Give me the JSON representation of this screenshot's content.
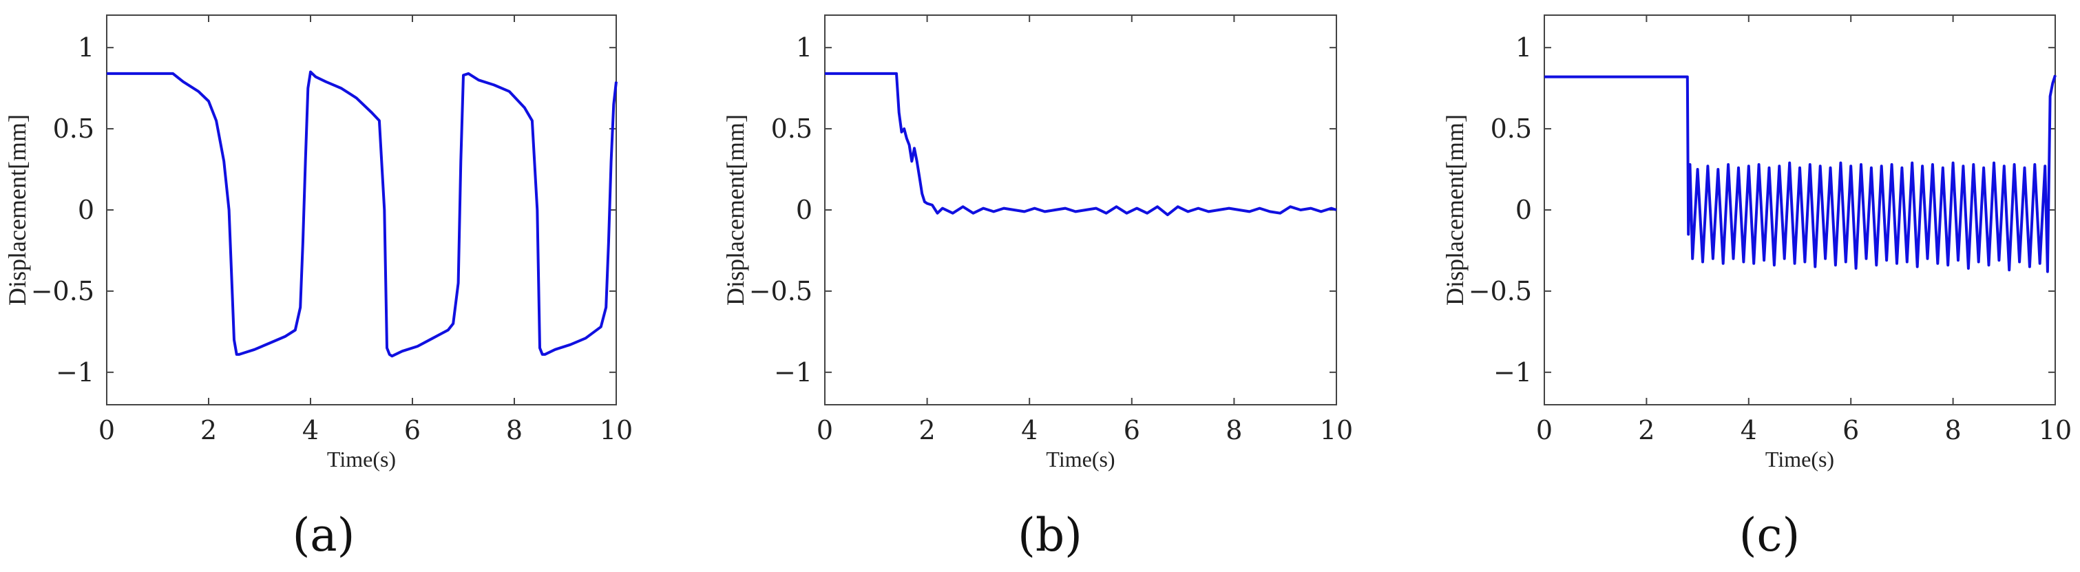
{
  "colors": {
    "series": "#1010e0",
    "axis": "#444444",
    "text": "#222222"
  },
  "chart_data": [
    {
      "type": "line",
      "panel_label": "(a)",
      "xlabel": "Time(s)",
      "ylabel": "Displacement[mm]",
      "xlim": [
        0,
        10
      ],
      "ylim": [
        -1.2,
        1.2
      ],
      "xticks": [
        0,
        2,
        4,
        6,
        8,
        10
      ],
      "yticks": [
        1,
        0.5,
        0,
        -0.5,
        -1
      ],
      "xtick_labels": [
        "0",
        "2",
        "4",
        "6",
        "8",
        "10"
      ],
      "ytick_labels": [
        "1",
        "0.5",
        "0",
        "−0.5",
        "−1"
      ],
      "grid": false,
      "series": [
        {
          "x": [
            0,
            0.5,
            1.0,
            1.3,
            1.5,
            1.8,
            2.0,
            2.15,
            2.3,
            2.4,
            2.45,
            2.5,
            2.55,
            2.6,
            2.7,
            2.9,
            3.2,
            3.5,
            3.7,
            3.8,
            3.85,
            3.9,
            3.95,
            4.0,
            4.1,
            4.3,
            4.6,
            4.9,
            5.2,
            5.35,
            5.45,
            5.5,
            5.55,
            5.6,
            5.8,
            6.1,
            6.4,
            6.7,
            6.8,
            6.9,
            6.95,
            7.0,
            7.1,
            7.3,
            7.6,
            7.9,
            8.2,
            8.35,
            8.45,
            8.5,
            8.55,
            8.6,
            8.8,
            9.1,
            9.4,
            9.7,
            9.8,
            9.85,
            9.9,
            9.95,
            10.0
          ],
          "y": [
            0.84,
            0.84,
            0.84,
            0.84,
            0.79,
            0.73,
            0.67,
            0.55,
            0.3,
            0.0,
            -0.4,
            -0.8,
            -0.89,
            -0.89,
            -0.88,
            -0.86,
            -0.82,
            -0.78,
            -0.74,
            -0.6,
            -0.2,
            0.3,
            0.75,
            0.85,
            0.82,
            0.79,
            0.75,
            0.69,
            0.6,
            0.55,
            0.0,
            -0.85,
            -0.89,
            -0.9,
            -0.87,
            -0.84,
            -0.79,
            -0.74,
            -0.7,
            -0.45,
            0.3,
            0.83,
            0.84,
            0.8,
            0.77,
            0.73,
            0.63,
            0.55,
            0.0,
            -0.85,
            -0.89,
            -0.89,
            -0.86,
            -0.83,
            -0.79,
            -0.72,
            -0.6,
            -0.2,
            0.3,
            0.65,
            0.79
          ]
        }
      ]
    },
    {
      "type": "line",
      "panel_label": "(b)",
      "xlabel": "Time(s)",
      "ylabel": "Displacement[mm]",
      "xlim": [
        0,
        10
      ],
      "ylim": [
        -1.2,
        1.2
      ],
      "xticks": [
        0,
        2,
        4,
        6,
        8,
        10
      ],
      "yticks": [
        1,
        0.5,
        0,
        -0.5,
        -1
      ],
      "xtick_labels": [
        "0",
        "2",
        "4",
        "6",
        "8",
        "10"
      ],
      "ytick_labels": [
        "1",
        "0.5",
        "0",
        "−0.5",
        "−1"
      ],
      "grid": false,
      "series": [
        {
          "x": [
            0,
            0.5,
            1.0,
            1.4,
            1.45,
            1.5,
            1.55,
            1.6,
            1.65,
            1.7,
            1.75,
            1.8,
            1.85,
            1.9,
            1.95,
            2.0,
            2.1,
            2.2,
            2.3,
            2.5,
            2.7,
            2.9,
            3.1,
            3.3,
            3.5,
            3.7,
            3.9,
            4.1,
            4.3,
            4.5,
            4.7,
            4.9,
            5.1,
            5.3,
            5.5,
            5.7,
            5.9,
            6.1,
            6.3,
            6.5,
            6.7,
            6.9,
            7.1,
            7.3,
            7.5,
            7.7,
            7.9,
            8.1,
            8.3,
            8.5,
            8.7,
            8.9,
            9.1,
            9.3,
            9.5,
            9.7,
            9.9,
            10.0
          ],
          "y": [
            0.84,
            0.84,
            0.84,
            0.84,
            0.6,
            0.48,
            0.5,
            0.44,
            0.4,
            0.3,
            0.38,
            0.3,
            0.2,
            0.1,
            0.05,
            0.04,
            0.03,
            -0.02,
            0.01,
            -0.02,
            0.02,
            -0.02,
            0.01,
            -0.01,
            0.01,
            0.0,
            -0.01,
            0.01,
            -0.01,
            0.0,
            0.01,
            -0.01,
            0.0,
            0.01,
            -0.02,
            0.02,
            -0.02,
            0.01,
            -0.02,
            0.02,
            -0.03,
            0.02,
            -0.01,
            0.01,
            -0.01,
            0.0,
            0.01,
            0.0,
            -0.01,
            0.01,
            -0.01,
            -0.02,
            0.02,
            0.0,
            0.01,
            -0.01,
            0.01,
            0.0
          ]
        }
      ]
    },
    {
      "type": "line",
      "panel_label": "(c)",
      "xlabel": "Time(s)",
      "ylabel": "Displacement[mm]",
      "xlim": [
        0,
        10
      ],
      "ylim": [
        -1.2,
        1.2
      ],
      "xticks": [
        0,
        2,
        4,
        6,
        8,
        10
      ],
      "yticks": [
        1,
        0.5,
        0,
        -0.5,
        -1
      ],
      "xtick_labels": [
        "0",
        "2",
        "4",
        "6",
        "8",
        "10"
      ],
      "ytick_labels": [
        "1",
        "0.5",
        "0",
        "−0.5",
        "−1"
      ],
      "grid": false,
      "series": [
        {
          "x": [
            0,
            1.0,
            2.0,
            2.8,
            2.82,
            2.85,
            2.9,
            3.0,
            3.1,
            3.2,
            3.3,
            3.4,
            3.5,
            3.6,
            3.7,
            3.8,
            3.9,
            4.0,
            4.1,
            4.2,
            4.3,
            4.4,
            4.5,
            4.6,
            4.7,
            4.8,
            4.9,
            5.0,
            5.1,
            5.2,
            5.3,
            5.4,
            5.5,
            5.6,
            5.7,
            5.8,
            5.9,
            6.0,
            6.1,
            6.2,
            6.3,
            6.4,
            6.5,
            6.6,
            6.7,
            6.8,
            6.9,
            7.0,
            7.1,
            7.2,
            7.3,
            7.4,
            7.5,
            7.6,
            7.7,
            7.8,
            7.9,
            8.0,
            8.1,
            8.2,
            8.3,
            8.4,
            8.5,
            8.6,
            8.7,
            8.8,
            8.9,
            9.0,
            9.1,
            9.2,
            9.3,
            9.4,
            9.5,
            9.6,
            9.7,
            9.8,
            9.85,
            9.9,
            9.95,
            10.0
          ],
          "y": [
            0.82,
            0.82,
            0.82,
            0.82,
            -0.15,
            0.28,
            -0.3,
            0.25,
            -0.32,
            0.27,
            -0.3,
            0.25,
            -0.33,
            0.28,
            -0.3,
            0.26,
            -0.32,
            0.27,
            -0.33,
            0.28,
            -0.31,
            0.26,
            -0.34,
            0.27,
            -0.3,
            0.29,
            -0.33,
            0.26,
            -0.32,
            0.28,
            -0.35,
            0.27,
            -0.3,
            0.26,
            -0.34,
            0.29,
            -0.32,
            0.27,
            -0.36,
            0.28,
            -0.3,
            0.26,
            -0.34,
            0.27,
            -0.31,
            0.28,
            -0.33,
            0.26,
            -0.32,
            0.29,
            -0.35,
            0.27,
            -0.3,
            0.28,
            -0.33,
            0.26,
            -0.34,
            0.29,
            -0.31,
            0.27,
            -0.36,
            0.28,
            -0.32,
            0.26,
            -0.34,
            0.29,
            -0.31,
            0.27,
            -0.37,
            0.28,
            -0.32,
            0.26,
            -0.35,
            0.28,
            -0.33,
            0.27,
            -0.38,
            0.7,
            0.78,
            0.83
          ]
        }
      ]
    }
  ]
}
